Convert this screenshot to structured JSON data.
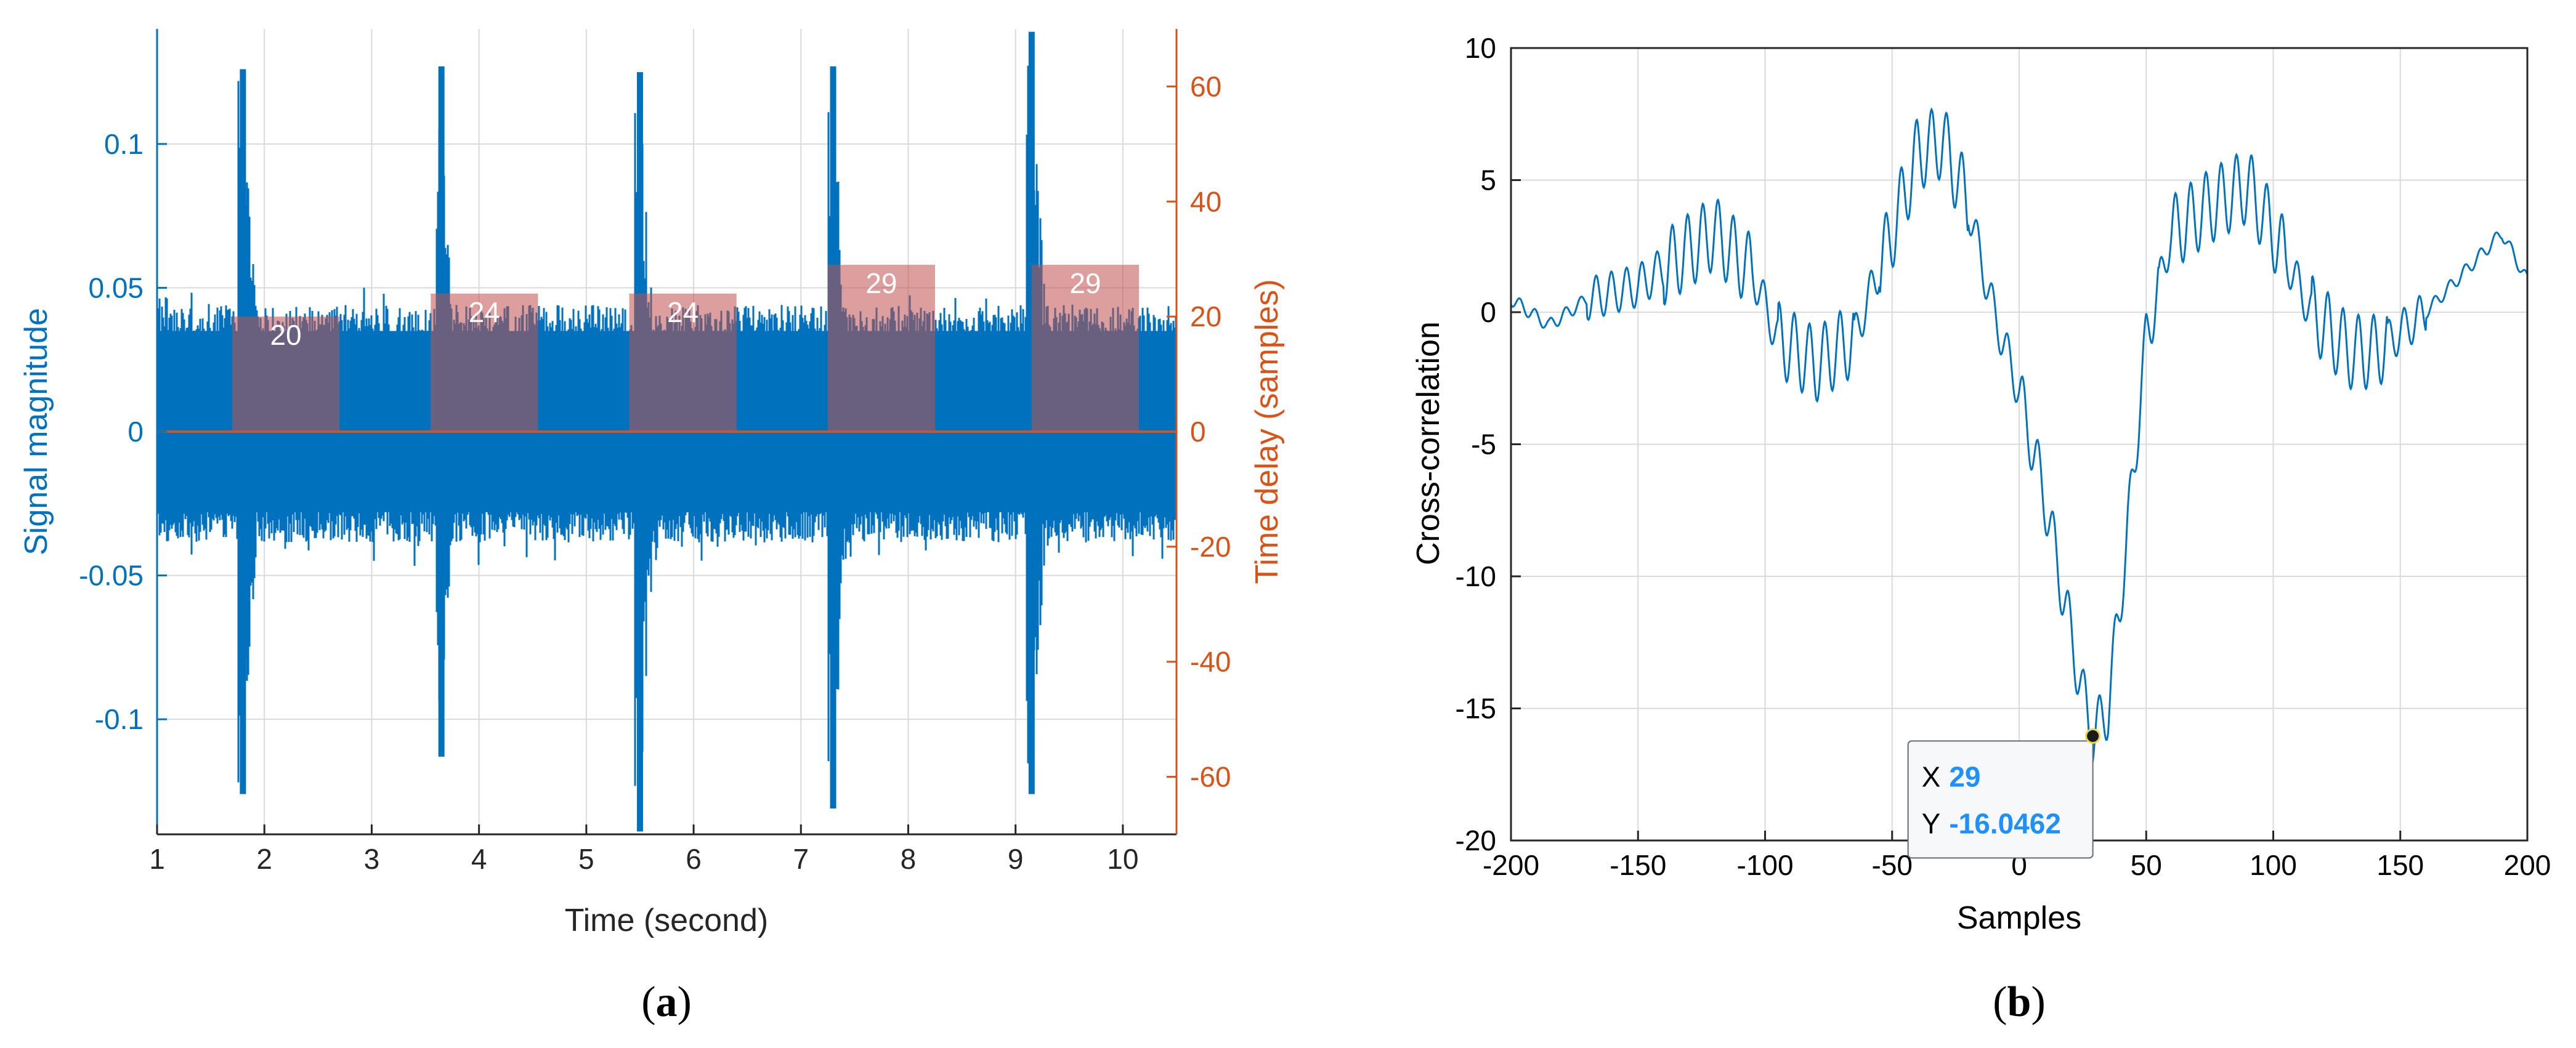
{
  "colors": {
    "signal": "#0072BD",
    "delay": "#D95319",
    "delay_bar_fill": "#C0504D",
    "tick_dark": "#262626",
    "grid": "#DADADA",
    "tip_value": "#1E90FF"
  },
  "chart_data": [
    {
      "id": "a",
      "type": "line",
      "caption": {
        "open": "(",
        "letter": "a",
        "close": ")"
      },
      "xlabel": "Time (second)",
      "ylabel": "Signal magnitude",
      "y2label": "Time delay (samples)",
      "xlim": [
        1,
        10.5
      ],
      "ylim": [
        -0.14,
        0.14
      ],
      "y2lim": [
        -70,
        70
      ],
      "xticks": [
        1,
        2,
        3,
        4,
        5,
        6,
        7,
        8,
        9,
        10
      ],
      "yticks": [
        -0.1,
        -0.05,
        0,
        0.05,
        0.1
      ],
      "ytick_labels": [
        "-0.1",
        "-0.05",
        "0",
        "0.05",
        "0.1"
      ],
      "y2ticks": [
        -60,
        -40,
        -20,
        0,
        20,
        40,
        60
      ],
      "y2tick_labels": [
        "-60",
        "-40",
        "-20",
        "0",
        "20",
        "40",
        "60"
      ],
      "grid": true,
      "signal_series": {
        "name": "Signal magnitude",
        "noise_band": [
          -0.035,
          0.04
        ],
        "burst_times": [
          1.8,
          3.65,
          5.5,
          7.3,
          9.15
        ],
        "burst_peaks": [
          0.126,
          0.127,
          0.125,
          0.127,
          0.139
        ],
        "burst_troughs": [
          -0.126,
          -0.113,
          -0.139,
          -0.131,
          -0.126
        ]
      },
      "delay_series": {
        "name": "Time delay (samples)",
        "segments": [
          {
            "x0": 1.7,
            "x1": 2.7,
            "value": 20,
            "label": "20"
          },
          {
            "x0": 3.55,
            "x1": 4.55,
            "value": 24,
            "label": "24"
          },
          {
            "x0": 5.4,
            "x1": 6.4,
            "value": 24,
            "label": "24"
          },
          {
            "x0": 7.25,
            "x1": 8.25,
            "value": 29,
            "label": "29"
          },
          {
            "x0": 9.15,
            "x1": 10.15,
            "value": 29,
            "label": "29"
          }
        ]
      }
    },
    {
      "id": "b",
      "type": "line",
      "caption": {
        "open": "(",
        "letter": "b",
        "close": ")"
      },
      "xlabel": "Samples",
      "ylabel": "Cross-correlation",
      "xlim": [
        -200,
        200
      ],
      "ylim": [
        -20,
        10
      ],
      "xticks": [
        -200,
        -150,
        -100,
        -50,
        0,
        50,
        100,
        150,
        200
      ],
      "xtick_labels": [
        "-200",
        "-150",
        "-100",
        "-50",
        "0",
        "50",
        "100",
        "150",
        "200"
      ],
      "yticks": [
        -20,
        -15,
        -10,
        -5,
        0,
        5,
        10
      ],
      "ytick_labels": [
        "-20",
        "-15",
        "-10",
        "-5",
        "0",
        "5",
        "10"
      ],
      "grid": true,
      "series": {
        "name": "Cross-correlation",
        "envelope_x": [
          -200,
          -185,
          -170,
          -150,
          -135,
          -120,
          -105,
          -95,
          -80,
          -65,
          -50,
          -40,
          -30,
          -20,
          -10,
          0,
          10,
          20,
          25,
          29,
          35,
          42,
          50,
          60,
          75,
          90,
          100,
          115,
          130,
          140,
          160,
          180,
          190,
          200
        ],
        "envelope_y": [
          0.5,
          -0.5,
          0.5,
          1.0,
          2.0,
          3.0,
          1.5,
          -1.0,
          -2.0,
          -1.0,
          3.0,
          6.0,
          6.5,
          4.0,
          0.0,
          -3.0,
          -7.0,
          -12.0,
          -14.5,
          -16.05,
          -15.0,
          -9.0,
          -1.0,
          3.0,
          4.0,
          4.8,
          3.0,
          0.0,
          -1.5,
          -1.5,
          0.0,
          2.0,
          3.0,
          1.2
        ],
        "ripple_period": 6,
        "ripple_amplitude": 0.8
      },
      "datatip": {
        "x_label": "X",
        "x_value": "29",
        "y_label": "Y",
        "y_value": "-16.0462",
        "x": 29,
        "y": -16.0462
      }
    }
  ]
}
